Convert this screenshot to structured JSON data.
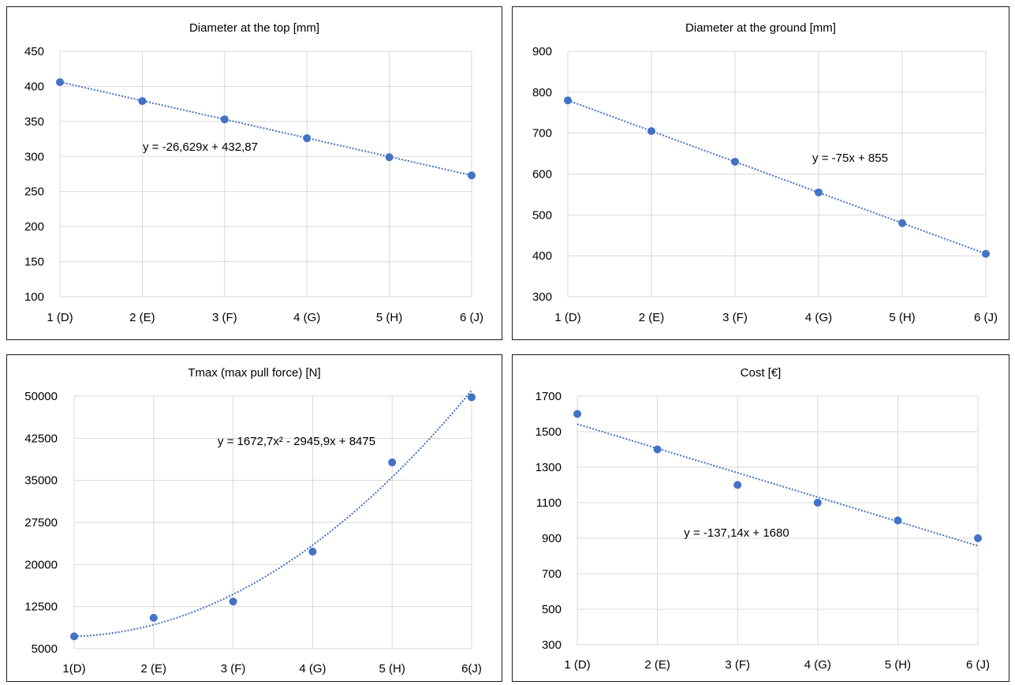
{
  "chart_data": [
    {
      "type": "scatter",
      "title": "Diameter at the top [mm]",
      "categories": [
        "1 (D)",
        "2 (E)",
        "3 (F)",
        "4 (G)",
        "5 (H)",
        "6 (J)"
      ],
      "x": [
        1,
        2,
        3,
        4,
        5,
        6
      ],
      "values": [
        406,
        379,
        353,
        326,
        299,
        273
      ],
      "ylim": [
        100,
        450
      ],
      "yticks": [
        "100",
        "150",
        "200",
        "250",
        "300",
        "350",
        "400",
        "450"
      ],
      "ytick_values": [
        100,
        150,
        200,
        250,
        300,
        350,
        400,
        450
      ],
      "trendline": {
        "kind": "linear",
        "coeffs": [
          -26.629,
          432.87
        ],
        "equation": "y = -26,629x + 432,87"
      },
      "grid": true,
      "marker_color": "#4472c4"
    },
    {
      "type": "scatter",
      "title": "Diameter at the ground [mm]",
      "categories": [
        "1 (D)",
        "2 (E)",
        "3 (F)",
        "4  (G)",
        "5 (H)",
        "6 (J)"
      ],
      "x": [
        1,
        2,
        3,
        4,
        5,
        6
      ],
      "values": [
        780,
        705,
        630,
        555,
        480,
        405
      ],
      "ylim": [
        300,
        900
      ],
      "yticks": [
        "300",
        "400",
        "500",
        "600",
        "700",
        "800",
        "900"
      ],
      "ytick_values": [
        300,
        400,
        500,
        600,
        700,
        800,
        900
      ],
      "trendline": {
        "kind": "linear",
        "coeffs": [
          -75,
          855
        ],
        "equation": "y = -75x + 855"
      },
      "grid": true,
      "marker_color": "#4472c4"
    },
    {
      "type": "scatter",
      "title": "Tmax (max pull force) [N]",
      "categories": [
        "1(D)",
        "2 (E)",
        "3 (F)",
        "4 (G)",
        "5 (H)",
        "6(J)"
      ],
      "x": [
        1,
        2,
        3,
        4,
        5,
        6
      ],
      "values": [
        7200,
        10500,
        13400,
        22300,
        38200,
        49800
      ],
      "ylim": [
        5000,
        50000
      ],
      "yticks": [
        "5000",
        "12500",
        "20000",
        "27500",
        "35000",
        "42500",
        "50000"
      ],
      "ytick_values": [
        5000,
        12500,
        20000,
        27500,
        35000,
        42500,
        50000
      ],
      "trendline": {
        "kind": "poly2",
        "coeffs": [
          1672.7,
          -2945.9,
          8475
        ],
        "equation": "y = 1672,7x² - 2945,9x + 8475"
      },
      "grid": true,
      "marker_color": "#4472c4"
    },
    {
      "type": "scatter",
      "title": "Cost [€]",
      "categories": [
        "1 (D)",
        "2  (E)",
        "3  (F)",
        "4  (G)",
        "5 (H)",
        "6  (J)"
      ],
      "x": [
        1,
        2,
        3,
        4,
        5,
        6
      ],
      "values": [
        1600,
        1400,
        1200,
        1100,
        1000,
        900
      ],
      "ylim": [
        300,
        1700
      ],
      "yticks": [
        "300",
        "500",
        "700",
        "900",
        "1100",
        "1300",
        "1500",
        "1700"
      ],
      "ytick_values": [
        300,
        500,
        700,
        900,
        1100,
        1300,
        1500,
        1700
      ],
      "trendline": {
        "kind": "linear",
        "coeffs": [
          -137.14,
          1680
        ],
        "equation": "y = -137,14x + 1680"
      },
      "grid": true,
      "marker_color": "#4472c4"
    }
  ]
}
